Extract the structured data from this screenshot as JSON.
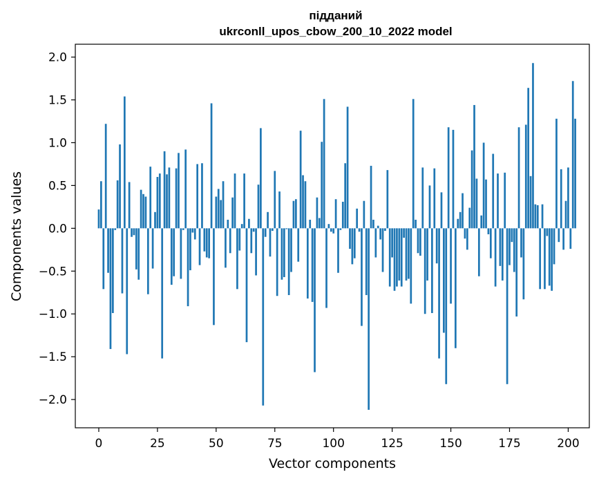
{
  "chart_data": {
    "type": "bar",
    "title_lines": [
      "підданий",
      "ukrconll_upos_cbow_200_10_2022 model"
    ],
    "xlabel": "Vector components",
    "ylabel": "Components values",
    "xlim": [
      -10,
      209
    ],
    "ylim": [
      -2.33,
      2.15
    ],
    "xticks": [
      0,
      25,
      50,
      75,
      100,
      125,
      150,
      175,
      200
    ],
    "yticks": [
      2.0,
      1.5,
      1.0,
      0.5,
      0.0,
      -0.5,
      -1.0,
      -1.5,
      -2.0
    ],
    "ytick_labels": [
      "2.0",
      "1.5",
      "1.0",
      "0.5",
      "0.0",
      "−0.5",
      "−1.0",
      "−1.5",
      "−2.0"
    ],
    "grid": false,
    "bar_color": "#1f77b4",
    "values": [
      0.22,
      0.55,
      -0.71,
      1.22,
      -0.52,
      -1.41,
      -0.99,
      -0.02,
      0.56,
      0.98,
      -0.76,
      1.54,
      -1.47,
      0.54,
      -0.1,
      -0.08,
      -0.48,
      -0.6,
      0.45,
      0.4,
      0.37,
      -0.77,
      0.72,
      -0.47,
      0.19,
      0.6,
      0.64,
      -1.52,
      0.9,
      0.63,
      0.71,
      -0.66,
      -0.56,
      0.7,
      0.88,
      -0.59,
      -0.02,
      0.92,
      -0.91,
      -0.49,
      -0.05,
      -0.13,
      0.75,
      -0.43,
      0.76,
      -0.27,
      -0.34,
      -0.35,
      1.46,
      -1.13,
      0.37,
      0.46,
      0.33,
      0.55,
      -0.46,
      0.1,
      -0.29,
      0.36,
      0.64,
      -0.71,
      -0.26,
      0.05,
      0.64,
      -1.33,
      0.11,
      -0.29,
      -0.04,
      -0.55,
      0.51,
      1.17,
      -2.07,
      -0.1,
      0.19,
      -0.33,
      -0.03,
      0.67,
      -0.79,
      0.43,
      -0.6,
      -0.57,
      -0.01,
      -0.78,
      -0.51,
      0.32,
      0.34,
      -0.39,
      1.14,
      0.62,
      0.55,
      -0.82,
      0.1,
      -0.86,
      -1.68,
      0.36,
      0.12,
      1.01,
      1.51,
      -0.93,
      0.05,
      -0.04,
      -0.06,
      0.34,
      -0.52,
      -0.02,
      0.31,
      0.76,
      1.42,
      -0.24,
      -0.42,
      -0.35,
      0.23,
      -0.04,
      -1.14,
      0.32,
      -0.78,
      -2.12,
      0.73,
      0.1,
      -0.34,
      0.03,
      -0.13,
      -0.51,
      -0.03,
      0.68,
      -0.68,
      -0.34,
      -0.73,
      -0.68,
      -0.61,
      -0.68,
      -0.11,
      -0.61,
      -0.59,
      -0.88,
      1.51,
      0.1,
      -0.29,
      -0.32,
      0.71,
      -1.0,
      -0.61,
      0.5,
      -0.99,
      0.7,
      -0.41,
      -1.52,
      0.42,
      -1.22,
      -1.82,
      1.18,
      -0.88,
      1.15,
      -1.4,
      0.11,
      0.19,
      0.41,
      -0.12,
      -0.25,
      0.24,
      0.91,
      1.44,
      0.58,
      -0.56,
      0.15,
      1.0,
      0.57,
      -0.07,
      -0.35,
      0.87,
      -0.68,
      0.64,
      -0.44,
      -0.61,
      0.65,
      -1.82,
      -0.43,
      -0.16,
      -0.51,
      -1.03,
      1.18,
      -0.34,
      -0.83,
      1.21,
      1.64,
      0.61,
      1.93,
      0.28,
      0.27,
      -0.71,
      0.28,
      -0.71,
      -0.09,
      -0.67,
      -0.73,
      -0.42,
      1.28,
      -0.16,
      0.69,
      -0.25,
      0.32,
      0.71,
      -0.24,
      1.72,
      1.28
    ]
  }
}
